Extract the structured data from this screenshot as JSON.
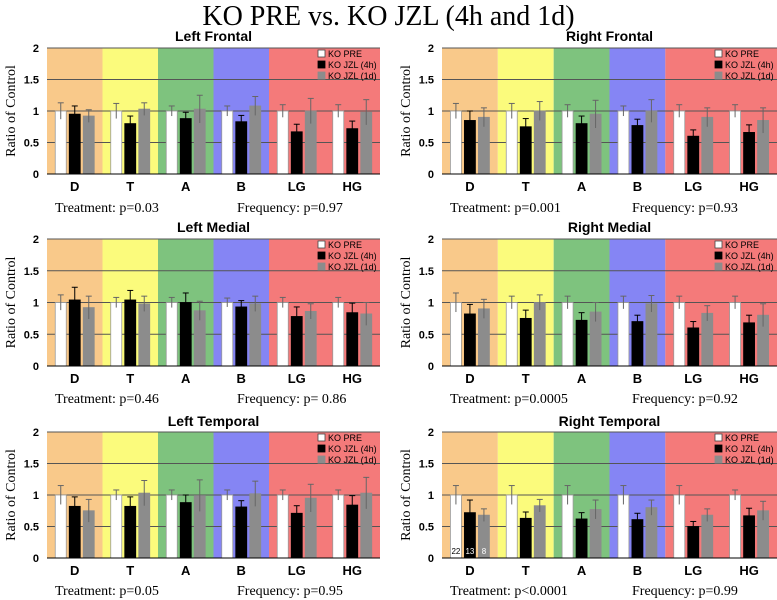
{
  "title": "KO PRE vs. KO JZL (4h and 1d)",
  "legend": [
    {
      "label": "KO PRE",
      "color": "#ffffff"
    },
    {
      "label": "KO JZL (4h)",
      "color": "#000000"
    },
    {
      "label": "KO JZL (1d)",
      "color": "#8c8c8c"
    }
  ],
  "band_colors": [
    "#f9c98a",
    "#fbfb7c",
    "#7ec37e",
    "#8585f4",
    "#f47a7a"
  ],
  "chart_data": [
    {
      "type": "bar",
      "title": "Left Frontal",
      "ylabel": "Ratio of Control",
      "ylim": [
        0,
        2
      ],
      "yticks": [
        "0",
        "0.5",
        "1",
        "1.5",
        "2"
      ],
      "categories": [
        "D",
        "T",
        "A",
        "B",
        "LG",
        "HG"
      ],
      "series": [
        {
          "name": "KO PRE",
          "values": [
            1.0,
            1.0,
            1.0,
            1.0,
            1.0,
            1.0
          ],
          "errors": [
            0.13,
            0.12,
            0.08,
            0.08,
            0.1,
            0.1
          ]
        },
        {
          "name": "KO JZL (4h)",
          "values": [
            0.95,
            0.8,
            0.88,
            0.83,
            0.67,
            0.72
          ],
          "errors": [
            0.13,
            0.12,
            0.1,
            0.1,
            0.12,
            0.12
          ]
        },
        {
          "name": "KO JZL (1d)",
          "values": [
            0.92,
            1.03,
            1.03,
            1.08,
            1.0,
            0.98
          ],
          "errors": [
            0.1,
            0.1,
            0.22,
            0.15,
            0.2,
            0.2
          ]
        }
      ],
      "stats": {
        "treatment": "Treatment: p=0.03",
        "frequency": "Frequency: p=0.97"
      }
    },
    {
      "type": "bar",
      "title": "Right Frontal",
      "ylabel": "Ratio of Control",
      "ylim": [
        0,
        2
      ],
      "yticks": [
        "0",
        "0.5",
        "1",
        "1.5",
        "2"
      ],
      "categories": [
        "D",
        "T",
        "A",
        "B",
        "LG",
        "HG"
      ],
      "series": [
        {
          "name": "KO PRE",
          "values": [
            1.0,
            1.0,
            1.0,
            1.0,
            1.0,
            1.0
          ],
          "errors": [
            0.12,
            0.12,
            0.1,
            0.08,
            0.1,
            0.1
          ]
        },
        {
          "name": "KO JZL (4h)",
          "values": [
            0.85,
            0.75,
            0.8,
            0.77,
            0.6,
            0.66
          ],
          "errors": [
            0.15,
            0.13,
            0.12,
            0.1,
            0.1,
            0.12
          ]
        },
        {
          "name": "KO JZL (1d)",
          "values": [
            0.9,
            1.0,
            0.95,
            1.0,
            0.9,
            0.85
          ],
          "errors": [
            0.15,
            0.15,
            0.22,
            0.18,
            0.15,
            0.2
          ]
        }
      ],
      "stats": {
        "treatment": "Treatment: p=0.001",
        "frequency": "Frequency: p=0.93"
      }
    },
    {
      "type": "bar",
      "title": "Left Medial",
      "ylabel": "Ratio of Control",
      "ylim": [
        0,
        2
      ],
      "yticks": [
        "0",
        "0.5",
        "1",
        "1.5",
        "2"
      ],
      "categories": [
        "D",
        "T",
        "A",
        "B",
        "LG",
        "HG"
      ],
      "series": [
        {
          "name": "KO PRE",
          "values": [
            1.0,
            1.0,
            1.0,
            1.0,
            1.0,
            1.0
          ],
          "errors": [
            0.12,
            0.08,
            0.08,
            0.07,
            0.08,
            0.08
          ]
        },
        {
          "name": "KO JZL (4h)",
          "values": [
            1.04,
            1.04,
            1.0,
            0.93,
            0.78,
            0.84
          ],
          "errors": [
            0.2,
            0.15,
            0.15,
            0.1,
            0.15,
            0.15
          ]
        },
        {
          "name": "KO JZL (1d)",
          "values": [
            0.92,
            0.98,
            0.87,
            0.98,
            0.86,
            0.82
          ],
          "errors": [
            0.18,
            0.12,
            0.15,
            0.12,
            0.12,
            0.18
          ]
        }
      ],
      "stats": {
        "treatment": "Treatment: p=0.46",
        "frequency": "Frequency: p= 0.86"
      }
    },
    {
      "type": "bar",
      "title": "Right Medial",
      "ylabel": "Ratio of Control",
      "ylim": [
        0,
        2
      ],
      "yticks": [
        "0",
        "0.5",
        "1",
        "1.5",
        "2"
      ],
      "categories": [
        "D",
        "T",
        "A",
        "B",
        "LG",
        "HG"
      ],
      "series": [
        {
          "name": "KO PRE",
          "values": [
            1.0,
            1.0,
            1.0,
            1.0,
            1.0,
            1.0
          ],
          "errors": [
            0.15,
            0.1,
            0.1,
            0.1,
            0.1,
            0.1
          ]
        },
        {
          "name": "KO JZL (4h)",
          "values": [
            0.82,
            0.75,
            0.72,
            0.7,
            0.6,
            0.68
          ],
          "errors": [
            0.15,
            0.13,
            0.12,
            0.1,
            0.1,
            0.12
          ]
        },
        {
          "name": "KO JZL (1d)",
          "values": [
            0.9,
            1.0,
            0.85,
            0.98,
            0.83,
            0.8
          ],
          "errors": [
            0.15,
            0.12,
            0.15,
            0.13,
            0.12,
            0.18
          ]
        }
      ],
      "stats": {
        "treatment": "Treatment: p=0.0005",
        "frequency": "Frequency: p=0.92"
      }
    },
    {
      "type": "bar",
      "title": "Left Temporal",
      "ylabel": "Ratio of Control",
      "ylim": [
        0,
        2
      ],
      "yticks": [
        "0",
        "0.5",
        "1",
        "1.5",
        "2"
      ],
      "categories": [
        "D",
        "T",
        "A",
        "B",
        "LG",
        "HG"
      ],
      "series": [
        {
          "name": "KO PRE",
          "values": [
            1.0,
            1.0,
            1.0,
            1.0,
            1.0,
            1.0
          ],
          "errors": [
            0.15,
            0.08,
            0.08,
            0.08,
            0.08,
            0.08
          ]
        },
        {
          "name": "KO JZL (4h)",
          "values": [
            0.82,
            0.82,
            0.88,
            0.81,
            0.71,
            0.84
          ],
          "errors": [
            0.15,
            0.15,
            0.12,
            0.1,
            0.12,
            0.15
          ]
        },
        {
          "name": "KO JZL (1d)",
          "values": [
            0.75,
            1.03,
            0.99,
            1.02,
            0.95,
            1.03
          ],
          "errors": [
            0.18,
            0.2,
            0.25,
            0.2,
            0.22,
            0.25
          ]
        }
      ],
      "stats": {
        "treatment": "Treatment: p=0.05",
        "frequency": "Frequency: p=0.95"
      }
    },
    {
      "type": "bar",
      "title": "Right Temporal",
      "ylabel": "Ratio of Control",
      "ylim": [
        0,
        2
      ],
      "yticks": [
        "0",
        "0.5",
        "1",
        "1.5",
        "2"
      ],
      "categories": [
        "D",
        "T",
        "A",
        "B",
        "LG",
        "HG"
      ],
      "series": [
        {
          "name": "KO PRE",
          "values": [
            1.0,
            1.0,
            1.0,
            1.0,
            1.0,
            1.0
          ],
          "errors": [
            0.15,
            0.15,
            0.15,
            0.15,
            0.15,
            0.08
          ]
        },
        {
          "name": "KO JZL (4h)",
          "values": [
            0.72,
            0.63,
            0.62,
            0.61,
            0.5,
            0.67
          ],
          "errors": [
            0.2,
            0.1,
            0.1,
            0.1,
            0.08,
            0.12
          ]
        },
        {
          "name": "KO JZL (1d)",
          "values": [
            0.68,
            0.83,
            0.77,
            0.8,
            0.68,
            0.75
          ],
          "errors": [
            0.1,
            0.1,
            0.15,
            0.12,
            0.1,
            0.15
          ]
        }
      ],
      "bar_annotations": [
        "22",
        "13",
        "8"
      ],
      "stats": {
        "treatment": "Treatment: p<0.0001",
        "frequency": "Frequency: p=0.99"
      }
    }
  ]
}
